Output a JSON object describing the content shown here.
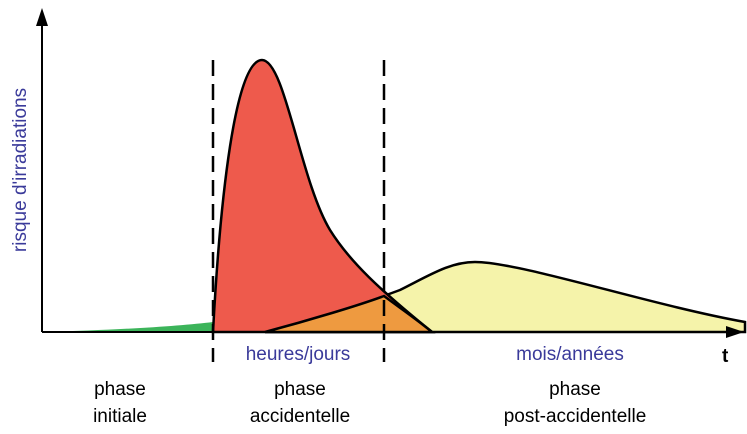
{
  "axes": {
    "y_label": "risque d'irradiations",
    "x_label": "t"
  },
  "periods": [
    "heures/jours",
    "mois/années"
  ],
  "phases": [
    {
      "line1": "phase",
      "line2": "initiale"
    },
    {
      "line1": "phase",
      "line2": "accidentelle"
    },
    {
      "line1": "phase",
      "line2": "post-accidentelle"
    }
  ]
}
